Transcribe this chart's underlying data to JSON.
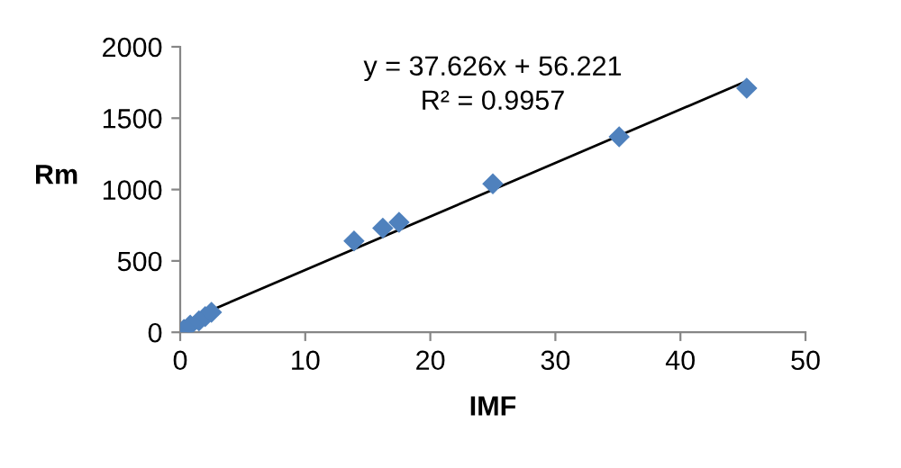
{
  "chart_data": {
    "type": "scatter",
    "xlabel": "IMF",
    "ylabel": "Rm",
    "xlim": [
      0,
      50
    ],
    "xticks": [
      0,
      10,
      20,
      30,
      40,
      50
    ],
    "ylim": [
      0,
      2000
    ],
    "yticks": [
      0,
      500,
      1000,
      1500,
      2000
    ],
    "grid": false,
    "legend": false,
    "series": [
      {
        "color": "#4f81bd",
        "marker": "diamond",
        "x": [
          0.3,
          0.8,
          1.5,
          2.0,
          2.5,
          13.9,
          16.2,
          17.5,
          25.0,
          35.1,
          45.3
        ],
        "values": [
          20,
          50,
          80,
          110,
          140,
          640,
          730,
          770,
          1040,
          1370,
          1710
        ]
      },
      {
        "type": "line",
        "color": "#000000",
        "marker": "none",
        "line_style": "solid",
        "x": [
          0.5,
          45.3
        ],
        "values": [
          80,
          1760
        ]
      }
    ],
    "annotations": [
      "y = 37.626x + 56.221",
      "R² = 0.9957"
    ]
  }
}
